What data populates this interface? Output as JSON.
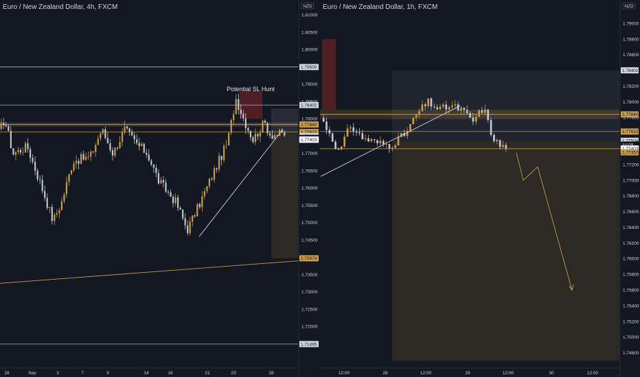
{
  "colors": {
    "background": "#131722",
    "bull": "#c89b4e",
    "bear": "#c3c6cd",
    "level_gold": "#c89b4e",
    "level_white": "#d1d4dc",
    "zone_red": "#5a1f24",
    "zone_gray": "#3a3d47",
    "zone_brown": "#2e2a25"
  },
  "chart_data": [
    {
      "type": "candlestick",
      "title": "Euro / New Zealand Dollar, 4h, FXCM",
      "unit": "NZD",
      "ylim": [
        1.709,
        1.811
      ],
      "y_ticks": [
        "1.81000",
        "1.80500",
        "1.80000",
        "1.79000",
        "1.78500",
        "1.78000",
        "1.77000",
        "1.76500",
        "1.76000",
        "1.75500",
        "1.75000",
        "1.74500",
        "1.73500",
        "1.73000",
        "1.72500",
        "1.72000"
      ],
      "x_ticks": [
        "28",
        "Sep",
        "3",
        "7",
        "9",
        "14",
        "16",
        "21",
        "23",
        "28"
      ],
      "tags": [
        {
          "label": "1.79500",
          "value": 1.795,
          "style": "white"
        },
        {
          "label": "1.78402",
          "value": 1.78402,
          "style": "white"
        },
        {
          "label": "1.77840",
          "value": 1.7784,
          "style": "gold"
        },
        {
          "label": "1.77622",
          "value": 1.77622,
          "style": "gold"
        },
        {
          "label": "1.77504",
          "value": 1.77504,
          "style": "white"
        },
        {
          "label": "02:44:09",
          "value": 1.7745,
          "style": "dark"
        },
        {
          "label": "1.77403",
          "value": 1.77403,
          "style": "light"
        },
        {
          "label": "1.73974",
          "value": 1.73974,
          "style": "gold"
        },
        {
          "label": "1.71495",
          "value": 1.71495,
          "style": "white"
        }
      ],
      "annotation": "Potential SL Hunt"
    },
    {
      "type": "candlestick",
      "title": "Euro / New Zealand Dollar, 1h, FXCM",
      "unit": "NZD",
      "ylim": [
        1.7465,
        1.7915
      ],
      "y_ticks": [
        "1.79000",
        "1.78800",
        "1.78600",
        "1.78200",
        "1.78000",
        "1.77800",
        "1.77200",
        "1.77000",
        "1.76800",
        "1.76600",
        "1.76400",
        "1.76200",
        "1.76000",
        "1.75800",
        "1.75600",
        "1.75400",
        "1.75200",
        "1.75000",
        "1.74800"
      ],
      "x_ticks": [
        "12:00",
        "28",
        "12:00",
        "29",
        "12:00",
        "30",
        "12:00"
      ],
      "tags": [
        {
          "label": "1.78402",
          "value": 1.78402,
          "style": "white"
        },
        {
          "label": "1.77840",
          "value": 1.7784,
          "style": "gold"
        },
        {
          "label": "1.77622",
          "value": 1.77622,
          "style": "gold"
        },
        {
          "label": "1.77504",
          "value": 1.77504,
          "style": "white"
        },
        {
          "label": "44:09",
          "value": 1.77455,
          "style": "dark"
        },
        {
          "label": "1.77403",
          "value": 1.77403,
          "style": "light"
        },
        {
          "label": "1.77357",
          "value": 1.77357,
          "style": "gold"
        }
      ]
    }
  ]
}
